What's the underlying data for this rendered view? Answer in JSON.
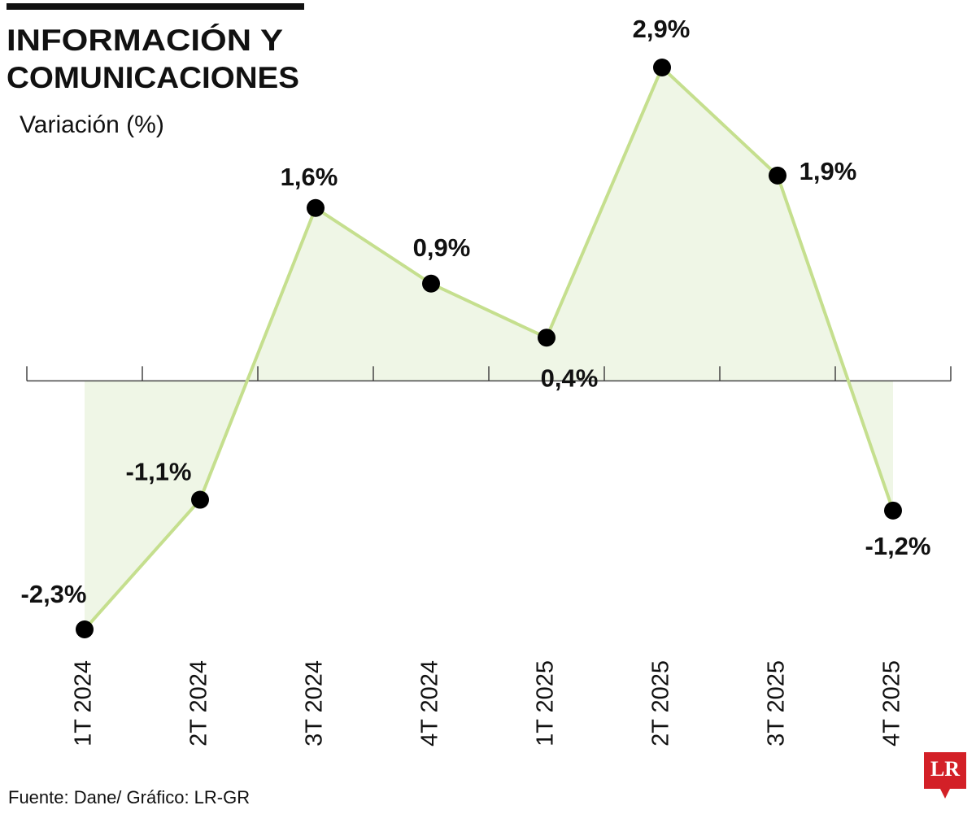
{
  "chart_data": {
    "type": "line",
    "title": [
      "INFORMACIÓN Y",
      "COMUNICACIONES"
    ],
    "subtitle": "Variación (%)",
    "categories": [
      "1T 2024",
      "2T 2024",
      "3T 2024",
      "4T 2024",
      "1T 2025",
      "2T 2025",
      "3T 2025",
      "4T 2025"
    ],
    "values": [
      -2.3,
      -1.1,
      1.6,
      0.9,
      0.4,
      2.9,
      1.9,
      -1.2
    ],
    "value_labels": [
      "-2,3%",
      "-1,1%",
      "1,6%",
      "0,9%",
      "0,4%",
      "2,9%",
      "1,9%",
      "-1,2%"
    ],
    "color": "#c5df8e",
    "area_color": "#eff6e6",
    "source": "Fuente: Dane/ Gráfico: LR-GR",
    "logo": "LR"
  }
}
